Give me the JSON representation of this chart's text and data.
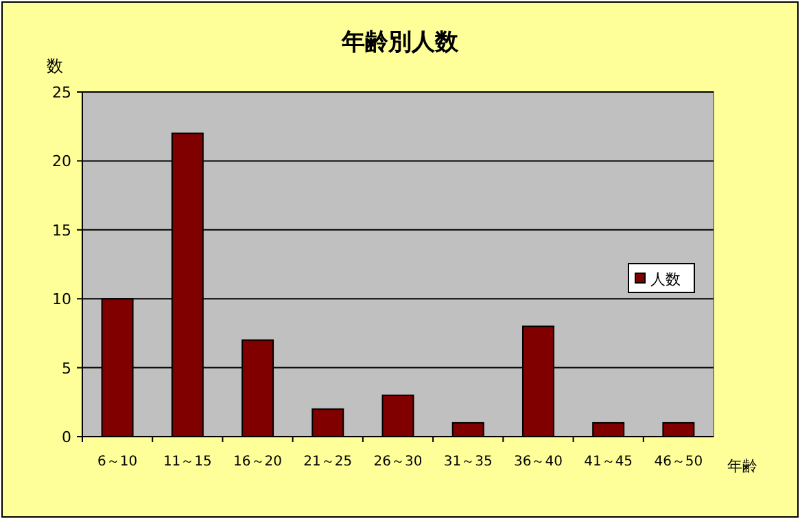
{
  "chart_data": {
    "type": "bar",
    "title": "年齢別人数",
    "ylabel": "数",
    "xlabel": "年齢",
    "categories": [
      "6～10",
      "11～15",
      "16～20",
      "21～25",
      "26～30",
      "31～35",
      "36～40",
      "41～45",
      "46～50"
    ],
    "series": [
      {
        "name": "人数",
        "color": "#800000",
        "values": [
          10,
          22,
          7,
          2,
          3,
          1,
          8,
          1,
          1
        ]
      }
    ],
    "ylim": [
      0,
      25
    ],
    "yticks": [
      0,
      5,
      10,
      15,
      20,
      25
    ],
    "grid": "y",
    "legend": "right"
  }
}
